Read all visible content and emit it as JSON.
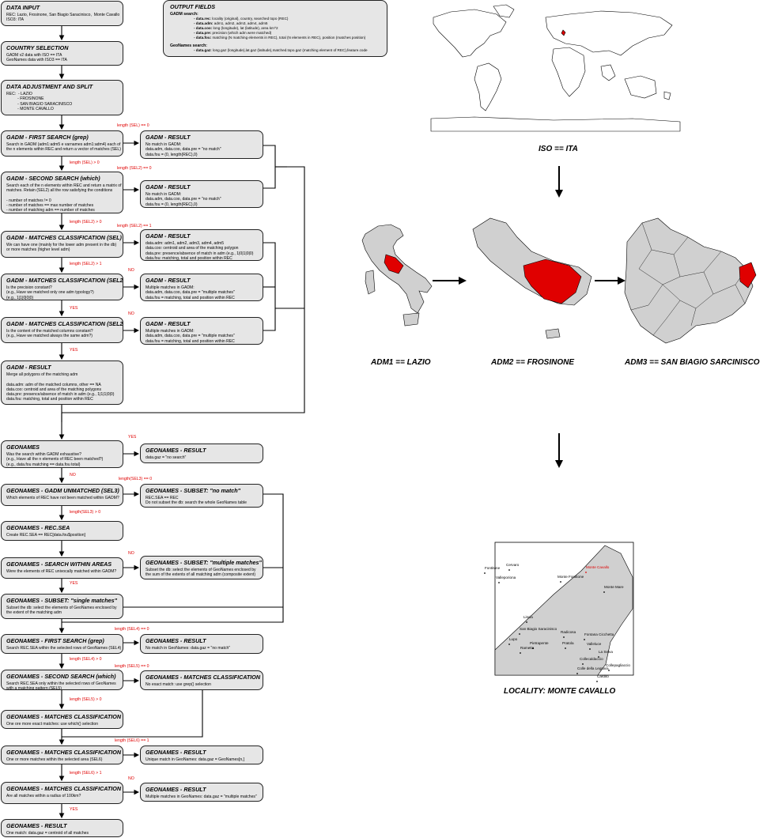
{
  "flow": {
    "data_input": {
      "title": "DATA INPUT",
      "body": "REC: Lazio, Frosinone, San Biagio Saracinisco,  Monte Cavallo\nISO3: ITA"
    },
    "country_selection": {
      "title": "COUNTRY SELECTION",
      "body": "GADM v2 data with ISO == ITA\nGeoNames data with ISO3 == ITA"
    },
    "data_adjustment": {
      "title": "DATA ADJUSTMENT AND SPLIT",
      "body": "REC:  - LAZIO\n          - FROSINONE\n          - SAN BIAGIO SARACINISCO\n          - MONTE CAVALLO"
    },
    "gadm_first_search": {
      "title": "GADM - FIRST SEARCH (grep)",
      "body": "Search in GADM (adm1:adm5 e varnames adm1:adm4) each of\nthe n elements within REC and return a vector of matches (SEL)"
    },
    "gadm_second_search": {
      "title": "GADM - SECOND SEARCH (which)",
      "body": "Search each of the n elements within REC and return a matrix of\nmatches. Retain (SEL2) all the row satisfying the conditions\n\n- number of matches != 0\n- number of matches == max number of matches\n- number of matching adm == number of matches"
    },
    "gadm_matches_sel": {
      "title": "GADM - MATCHES CLASSIFICATION (SEL)",
      "body": "We can have one (mainly for the lower adm present in the db)\nor more matches (higher level adm)"
    },
    "gadm_matches_sel2a": {
      "title": "GADM - MATCHES CLASSIFICATION (SEL2)",
      "body": "Is the precision constant?\n(e.g., Have we matched only one adm typology?)\n(e.g., 1|1|0|0|0)"
    },
    "gadm_matches_sel2b": {
      "title": "GADM - MATCHES CLASSIFICATION (SEL2)",
      "body": "Is the content of the matched columns constant?\n(e.g., Have we matched always the same adm?)"
    },
    "gadm_result_main": {
      "title": "GADM - RESULT",
      "body": "Merge all polygons of the matching adm\n\ndata.adm: adm of the matched columns, other == NA\ndata.coo: centroid and area of the matching polygons\ndata.pre: presence/absence of match in adm (e.g., 1|1|1|0|0)\ndata.fou: matching, total and position within REC"
    },
    "gadm_result_1": {
      "title": "GADM - RESULT",
      "body": "No match in GADM:\ndata.adm, data.coo, data.pre = \"no match\"\ndata.fou = (0, length(REC),0)"
    },
    "gadm_result_2": {
      "title": "GADM - RESULT",
      "body": "No match in GADM:\ndata.adm, data.coo, data.pre = \"no match\"\ndata.fou = (0, length(REC),0)"
    },
    "gadm_result_3": {
      "title": "GADM - RESULT",
      "body": "data.adm: adm1, adm2, adm3, adm4, adm5\ndata.coo: centroid and area of the matching polygon\ndata.pre: presence/absence of match in adm (e.g., 1|0|1|0|0)\ndata.fou: matching, total and position within REC"
    },
    "gadm_result_4": {
      "title": "GADM - RESULT",
      "body": "Multiple matches in GADM:\ndata.adm, data.coo, data.pre = \"multiple matches\"\ndata.fou = matching, total and position within REC"
    },
    "gadm_result_5": {
      "title": "GADM - RESULT",
      "body": "Multiple matches in GADM:\ndata.adm, data.coo, data.pre = \"multiple matches\"\ndata.fou = matching, total and position within REC"
    },
    "geonames": {
      "title": "GEONAMES",
      "body": "Was the search within GADM exhaustive?\n(e.g., Have all the n elements of REC been matched?)\n(e.g., data.fou matching == data.fou total)"
    },
    "geonames_result_1": {
      "title": "GEONAMES - RESULT",
      "body": "data.gaz = \"no search\""
    },
    "geonames_unmatched": {
      "title": "GEONAMES - GADM UNMATCHED (SEL3)",
      "body": "Which elements of REC have not been matched within GADM?"
    },
    "geonames_subset_nomatch": {
      "title": "GEONAMES - SUBSET: \"no match\"",
      "body": "REC.SEA == REC\nDo not subset the db: search the whole GeoNames table"
    },
    "geonames_recsea": {
      "title": "GEONAMES - REC.SEA",
      "body": "Create REC.SEA == REC[data.fou$position]"
    },
    "geonames_search_areas": {
      "title": "GEONAMES - SEARCH WITHIN AREAS",
      "body": "Were the elements of REC univocally matched within GADM?"
    },
    "geonames_subset_multi": {
      "title": "GEONAMES - SUBSET: \"multiple matches\"",
      "body": "Subset the db: select the elements of GeoNames enclosed by\nthe sum of the extents of all matching adm (composite extent)"
    },
    "geonames_subset_single": {
      "title": "GEONAMES - SUBSET: \"single matches\"",
      "body": "Subset the db: select the elements of GeoNames enclosed by\nthe extent of the matching adm"
    },
    "geonames_first_search": {
      "title": "GEONAMES - FIRST SEARCH (grep)",
      "body": "Search REC.SEA within the selected rows of GeoNames (SEL4)"
    },
    "geonames_result_2": {
      "title": "GEONAMES - RESULT",
      "body": "No match in GeoNames: data.gaz = \"no match\""
    },
    "geonames_second_search": {
      "title": "GEONAMES - SECOND SEARCH (which)",
      "body": "Search REC.SEA only within the selected rows of GeoNames\nwith a matching pattern (SEL5)"
    },
    "geonames_matches_class_r": {
      "title": "GEONAMES - MATCHES CLASSIFICATION",
      "body": "No exact match: use grep() selection"
    },
    "geonames_matches_class_1": {
      "title": "GEONAMES - MATCHES CLASSIFICATION",
      "body": "One ore more exact matches: use which() selection"
    },
    "geonames_matches_class_2": {
      "title": "GEONAMES - MATCHES CLASSIFICATION",
      "body": "One or more matches within the selected area (SEL6)"
    },
    "geonames_result_3": {
      "title": "GEONAMES - RESULT",
      "body": "Unique match in GeoNames: data.gaz = GeoNames[n,]"
    },
    "geonames_matches_class_3": {
      "title": "GEONAMES - MATCHES CLASSIFICATION",
      "body": "Are all matches within a radius of 100km?"
    },
    "geonames_result_4": {
      "title": "GEONAMES - RESULT",
      "body": "Multiple matches in GeoNames: data.gaz = \"multiple matches\""
    },
    "geonames_result_final": {
      "title": "GEONAMES - RESULT",
      "body": "One match: data.gaz = centroid of all matches"
    }
  },
  "conditions": {
    "sel_eq0": "length (SEL) == 0",
    "sel_gt0": "length (SEL) > 0",
    "sel2_eq0": "length (SEL2) == 0",
    "sel2_gt0": "length (SEL2) > 0",
    "sel2_eq1": "length (SEL2) == 1",
    "sel2_gt1": "length (SEL2) > 1",
    "no1": "NO",
    "yes1": "YES",
    "no2": "NO",
    "yes2": "YES",
    "yes3": "YES",
    "no3": "NO",
    "sel3_eq0": "length(SEL3) == 0",
    "sel3_gt0": "length(SEL3) > 0",
    "no4": "NO",
    "yes4": "YES",
    "sel4_eq0": "length (SEL4) == 0",
    "sel4_gt0": "length (SEL4) > 0",
    "sel5_eq0": "length (SEL5) == 0",
    "sel5_gt0": "length (SEL5) > 0",
    "sel6_eq1": "length (SEL6) == 1",
    "sel6_gt1": "length (SEL6) > 1",
    "no5": "NO",
    "yes5": "YES"
  },
  "output_fields": {
    "title": "OUTPUT FIELDS",
    "gadm_header": "GADM search:",
    "gadm_lines": [
      {
        "k": "- data.rec:",
        "v": " locality (original), country, searched topo (REC)"
      },
      {
        "k": "- data.adm:",
        "v": " adm1, adm2, adm3, adm4, adm5"
      },
      {
        "k": "- data.coo:",
        "v": " long (longitude), lat (latitude), area km^2"
      },
      {
        "k": "- data.pre:",
        "v": " precision (which adm were matched)"
      },
      {
        "k": "- data.fou:",
        "v": " matching (N matching elements in REC), total (N elements in REC), position (matches position)"
      }
    ],
    "geonames_header": "GeoNames search:",
    "geonames_lines": [
      {
        "k": "- data.gaz:",
        "v": " long.gaz (longitude),lat.gaz (latitude),matched.topo.gaz (matching element of REC),feature.code"
      }
    ]
  },
  "captions": {
    "iso": "ISO == ITA",
    "adm1": "ADM1 == LAZIO",
    "adm2": "ADM2 == FROSINONE",
    "adm3": "ADM3 == SAN BIAGIO SARCINISCO",
    "locality": "LOCALITY: MONTE CAVALLO"
  },
  "locality_map": {
    "places": [
      "Cervaro",
      "Fontitune",
      "Valleporiona",
      "Monte Cavallo",
      "Monte Fontitone",
      "Monte Mare",
      "Liscia",
      "San Biagio Saracinisco",
      "Radicosa",
      "Lupo",
      "Pietrapente",
      "Rametta",
      "Pratola",
      "Fontana Cicchetta",
      "Valleluce",
      "La Selva",
      "Collecaldaccio",
      "Colle della Legnara",
      "Collepagliaccio",
      "Cardito"
    ],
    "highlight": "Monte Cavallo",
    "highlight_color": "#e00000"
  },
  "colors": {
    "box_fill": "#e6e6e6",
    "highlight": "#e00000",
    "region_fill": "#d0d0d0"
  }
}
